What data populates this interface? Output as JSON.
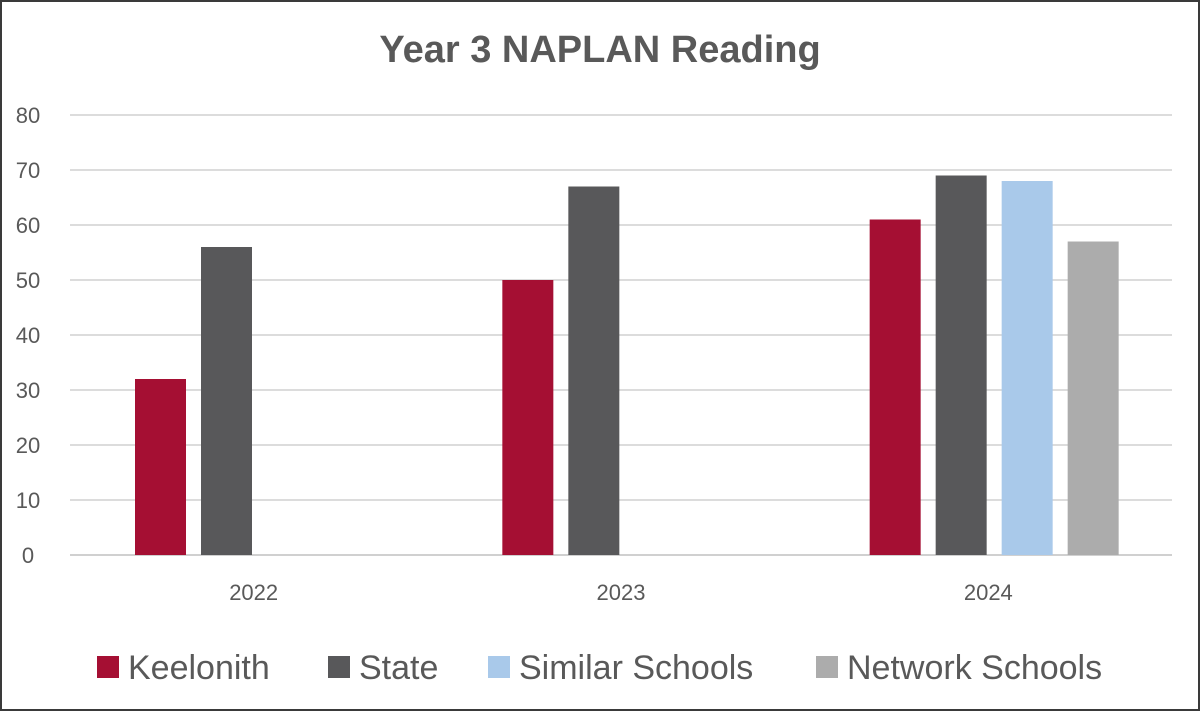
{
  "chart_data": {
    "type": "bar",
    "title": "Year 3 NAPLAN Reading",
    "xlabel": "",
    "ylabel": "",
    "categories": [
      "2022",
      "2023",
      "2024"
    ],
    "ylim": [
      0,
      80
    ],
    "yticks": [
      0,
      10,
      20,
      30,
      40,
      50,
      60,
      70,
      80
    ],
    "grid": true,
    "legend_position": "bottom",
    "series": [
      {
        "name": "Keelonith",
        "color": "#a50f33",
        "values": [
          32,
          50,
          61
        ]
      },
      {
        "name": "State",
        "color": "#58585a",
        "values": [
          56,
          67,
          69
        ]
      },
      {
        "name": "Similar Schools",
        "color": "#a9c9ea",
        "values": [
          null,
          null,
          68
        ]
      },
      {
        "name": "Network Schools",
        "color": "#acacac",
        "values": [
          null,
          null,
          57
        ]
      }
    ]
  }
}
